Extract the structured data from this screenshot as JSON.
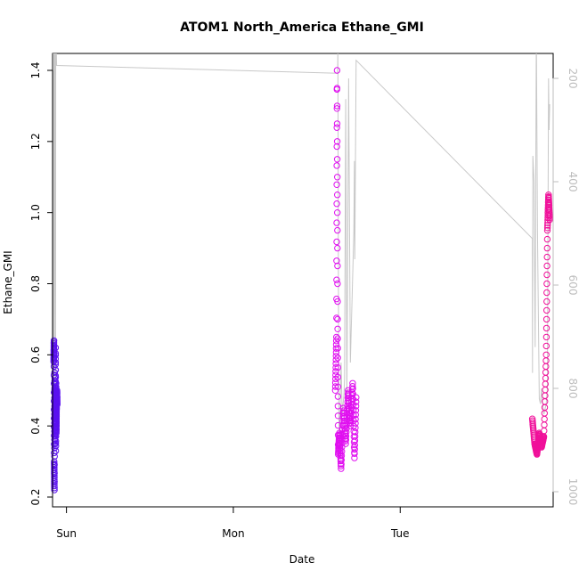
{
  "chart_data": {
    "type": "scatter",
    "title": "ATOM1 North_America Ethane_GMI",
    "xlabel": "Date",
    "ylabel": "Ethane_GMI",
    "x_axis": {
      "type": "date",
      "range": [
        "Sat 22:00",
        "Tue 22:00"
      ],
      "ticks": [
        {
          "label": "Sun",
          "value": "Sun 00:00"
        },
        {
          "label": "Mon",
          "value": "Mon 00:00"
        },
        {
          "label": "Tue",
          "value": "Tue 00:00"
        }
      ]
    },
    "y_axis": {
      "range": [
        0.2,
        1.4
      ],
      "ticks": [
        "0.2",
        "0.4",
        "0.6",
        "0.8",
        "1.0",
        "1.2",
        "1.4"
      ]
    },
    "y2_axis": {
      "range": [
        1000,
        200
      ],
      "ticks": [
        "200",
        "400",
        "600",
        "800",
        "1000"
      ],
      "color": "#bdbdbd"
    },
    "grid": false,
    "series": [
      {
        "color": "#5a10f0",
        "x_range": [
          "Sat 22:10",
          "Sat 22:40"
        ],
        "segments": [
          [
            "Sat 22:10",
            0.58
          ],
          [
            "Sat 22:12",
            0.64
          ],
          [
            "Sat 22:14",
            0.3
          ],
          [
            "Sat 22:16",
            0.22
          ],
          [
            "Sat 22:18",
            0.55
          ],
          [
            "Sat 22:20",
            0.35
          ],
          [
            "Sat 22:22",
            0.5
          ],
          [
            "Sat 22:24",
            0.4
          ],
          [
            "Sat 22:26",
            0.62
          ],
          [
            "Sat 22:28",
            0.33
          ],
          [
            "Sat 22:30",
            0.52
          ],
          [
            "Sat 22:32",
            0.38
          ],
          [
            "Sat 22:34",
            0.44
          ],
          [
            "Sat 22:36",
            0.48
          ],
          [
            "Sat 22:38",
            0.5
          ],
          [
            "Sat 22:40",
            0.46
          ]
        ]
      },
      {
        "color": "#e010f0",
        "x_range": [
          "Mon 14:40",
          "Mon 17:40"
        ],
        "segments": [
          [
            "Mon 14:40",
            0.5
          ],
          [
            "Mon 14:50",
            0.65
          ],
          [
            "Mon 14:55",
            1.4
          ],
          [
            "Mon 15:00",
            0.7
          ],
          [
            "Mon 15:05",
            0.32
          ],
          [
            "Mon 15:15",
            0.38
          ],
          [
            "Mon 15:30",
            0.28
          ],
          [
            "Mon 15:50",
            0.45
          ],
          [
            "Mon 16:10",
            0.35
          ],
          [
            "Mon 16:30",
            0.5
          ],
          [
            "Mon 16:50",
            0.4
          ],
          [
            "Mon 17:10",
            0.52
          ],
          [
            "Mon 17:25",
            0.31
          ],
          [
            "Mon 17:40",
            0.48
          ]
        ]
      },
      {
        "color": "#f0109a",
        "x_range": [
          "Tue 19:00",
          "Tue 21:30"
        ],
        "segments": [
          [
            "Tue 19:00",
            0.42
          ],
          [
            "Tue 19:20",
            0.35
          ],
          [
            "Tue 19:40",
            0.32
          ],
          [
            "Tue 20:00",
            0.38
          ],
          [
            "Tue 20:20",
            0.34
          ],
          [
            "Tue 20:40",
            0.37
          ],
          [
            "Tue 21:00",
            0.6
          ],
          [
            "Tue 21:10",
            0.95
          ],
          [
            "Tue 21:20",
            1.05
          ],
          [
            "Tue 21:30",
            0.98
          ]
        ]
      },
      {
        "color": "#c8c8c8",
        "axis": "y2",
        "line_points": [
          [
            "Sat 22:05",
            1000
          ],
          [
            "Sat 22:06",
            100
          ],
          [
            "Sat 22:12",
            100
          ],
          [
            "Sat 22:13",
            700
          ],
          [
            "Sat 22:14",
            900
          ],
          [
            "Sat 22:18",
            500
          ],
          [
            "Sat 22:20",
            100
          ],
          [
            "Sat 22:24",
            150
          ],
          [
            "Sat 22:26",
            800
          ],
          [
            "Sat 22:28",
            100
          ],
          [
            "Sat 22:35",
            175
          ],
          [
            "Mon 15:00",
            190
          ],
          [
            "Mon 15:02",
            150
          ],
          [
            "Mon 15:10",
            850
          ],
          [
            "Mon 15:15",
            900
          ],
          [
            "Mon 15:30",
            750
          ],
          [
            "Mon 15:40",
            850
          ],
          [
            "Mon 15:55",
            810
          ],
          [
            "Mon 16:00",
            780
          ],
          [
            "Mon 16:10",
            240
          ],
          [
            "Mon 16:20",
            820
          ],
          [
            "Mon 16:35",
            200
          ],
          [
            "Mon 16:50",
            750
          ],
          [
            "Mon 17:20",
            500
          ],
          [
            "Mon 17:25",
            360
          ],
          [
            "Mon 17:28",
            550
          ],
          [
            "Mon 17:40",
            165
          ],
          [
            "Tue 19:00",
            510
          ],
          [
            "Tue 19:02",
            770
          ],
          [
            "Tue 19:05",
            350
          ],
          [
            "Tue 19:15",
            400
          ],
          [
            "Tue 19:25",
            720
          ],
          [
            "Tue 19:35",
            100
          ],
          [
            "Tue 19:45",
            500
          ],
          [
            "Tue 20:00",
            820
          ],
          [
            "Tue 20:10",
            830
          ],
          [
            "Tue 20:20",
            800
          ],
          [
            "Tue 20:30",
            830
          ],
          [
            "Tue 20:40",
            850
          ],
          [
            "Tue 21:00",
            830
          ],
          [
            "Tue 21:10",
            800
          ],
          [
            "Tue 21:20",
            200
          ],
          [
            "Tue 21:25",
            300
          ],
          [
            "Tue 21:30",
            250
          ]
        ]
      }
    ]
  }
}
